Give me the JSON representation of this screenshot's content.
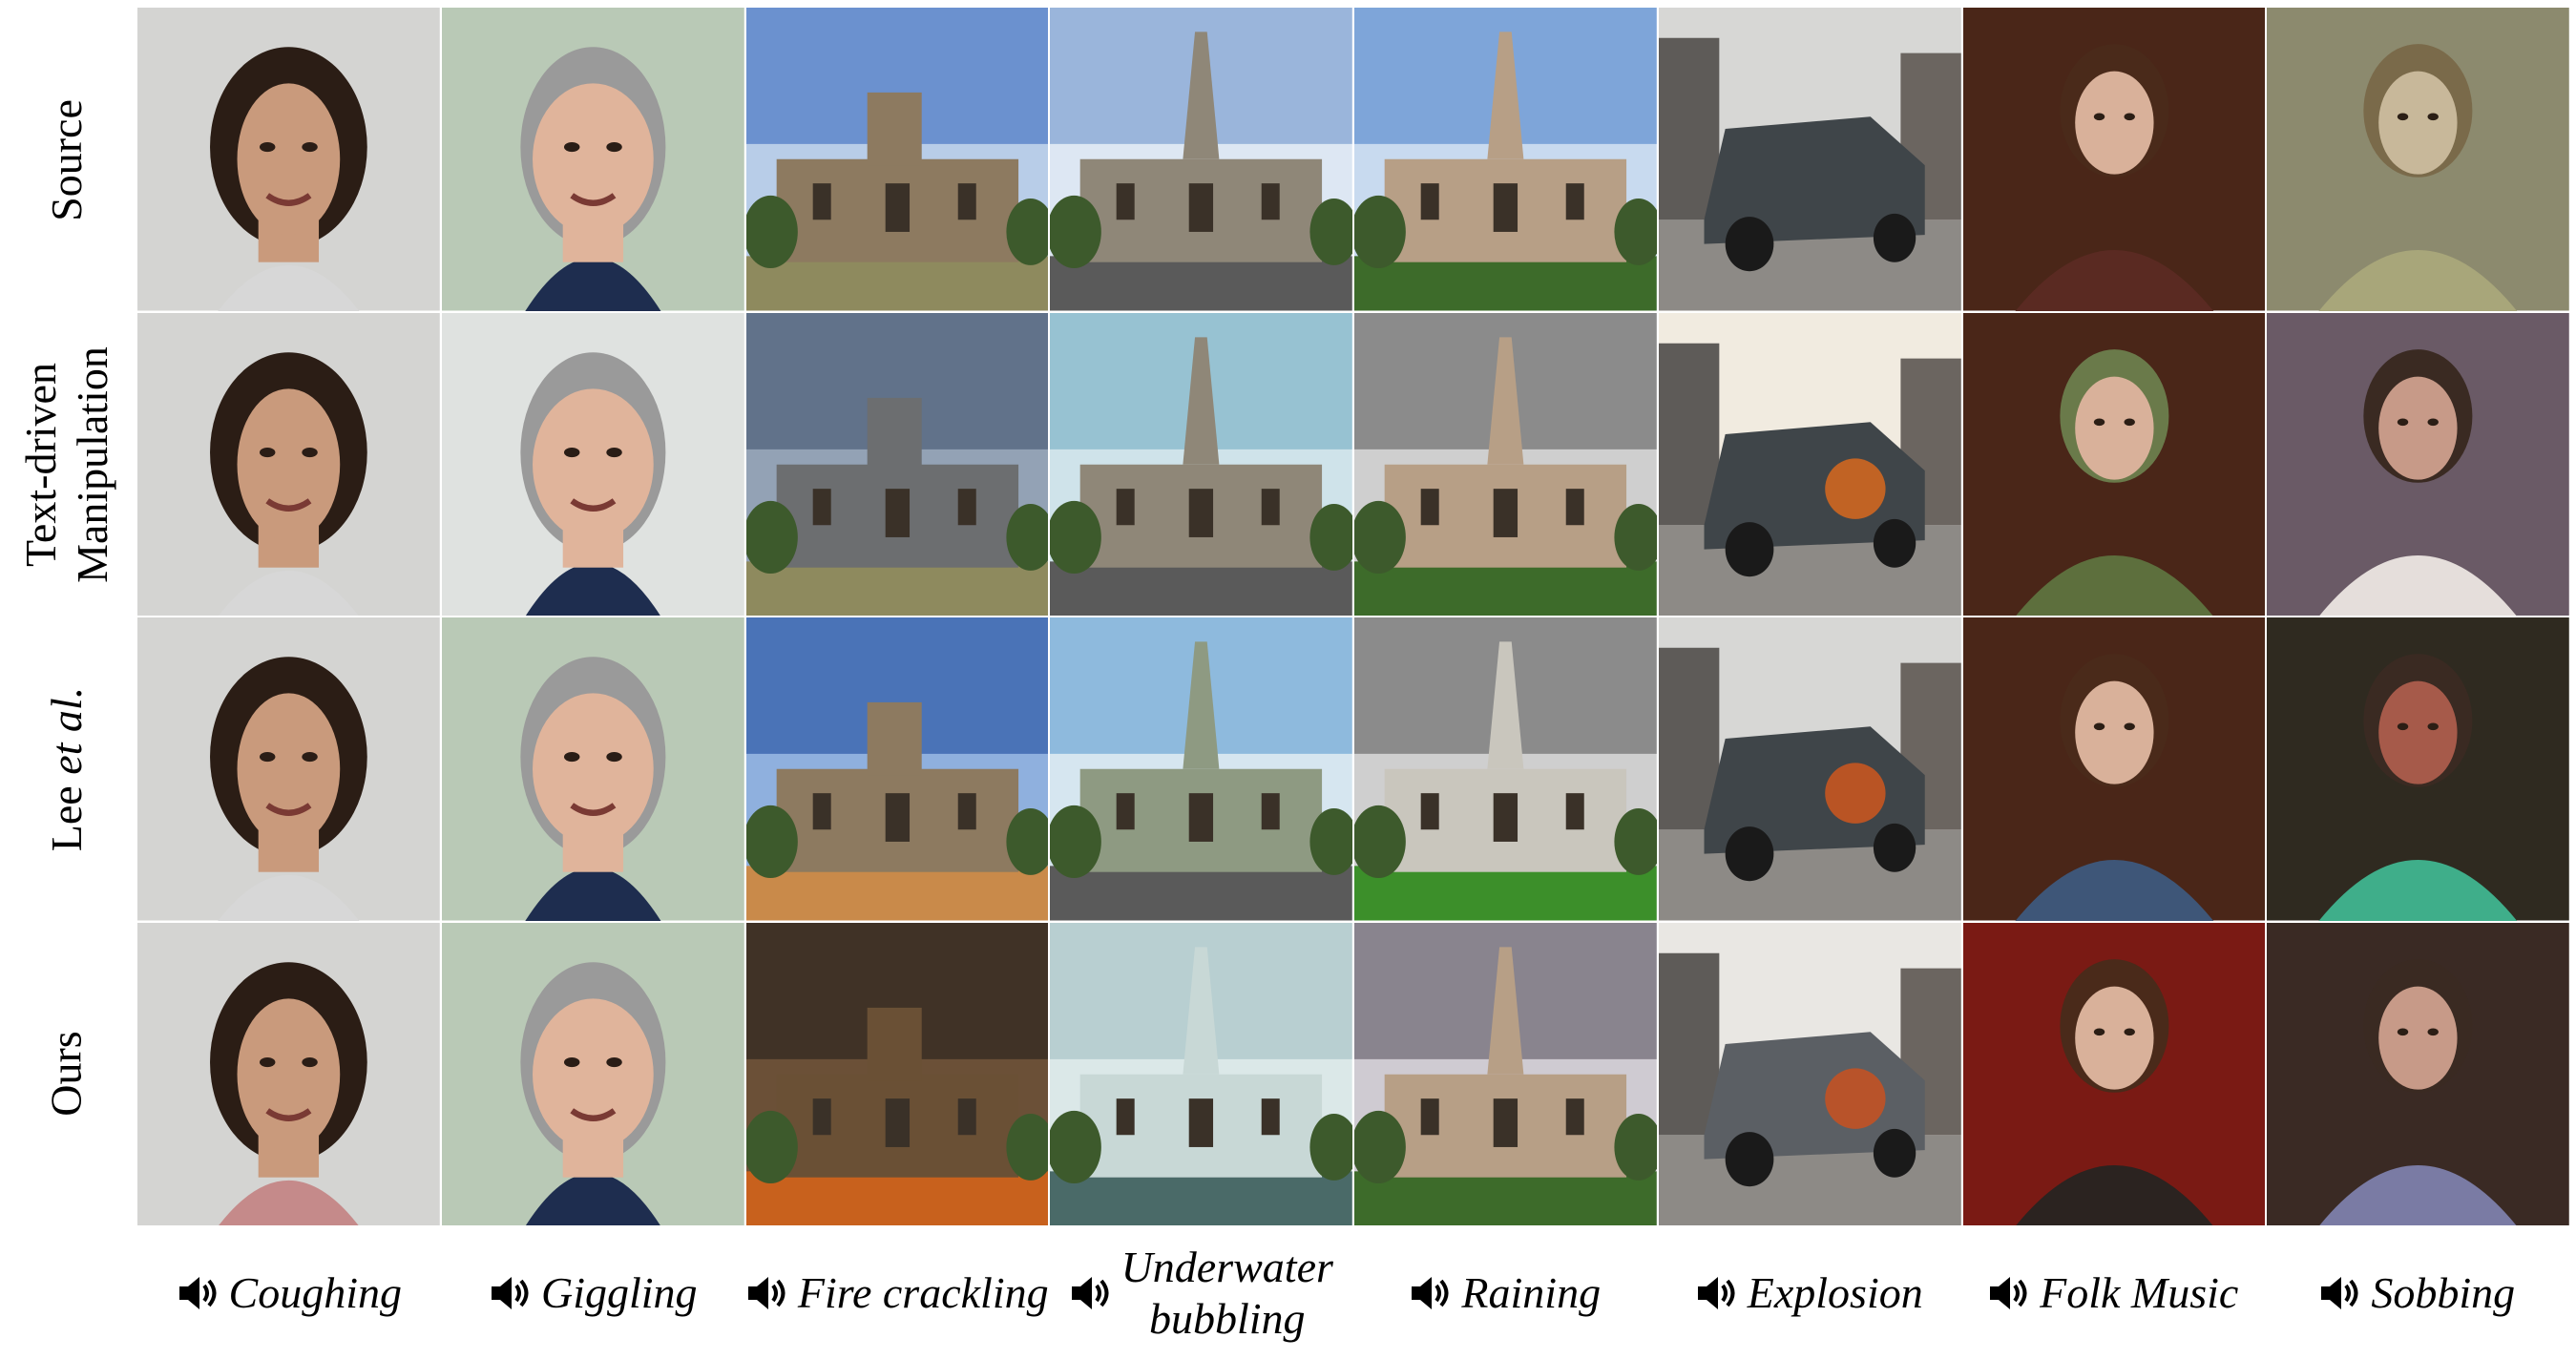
{
  "rows": [
    {
      "label": "Source"
    },
    {
      "label_line1": "Text-driven",
      "label_line2": "Manipulation"
    },
    {
      "label_prefix": "Lee ",
      "label_italic": "et al."
    },
    {
      "label": "Ours"
    }
  ],
  "columns": [
    {
      "caption": "Coughing"
    },
    {
      "caption": "Giggling"
    },
    {
      "caption": "Fire crackling"
    },
    {
      "caption_line1": "Underwater",
      "caption_line2": "bubbling"
    },
    {
      "caption": "Raining"
    },
    {
      "caption": "Explosion"
    },
    {
      "caption": "Folk Music"
    },
    {
      "caption": "Sobbing"
    }
  ],
  "icon": "speaker-icon"
}
